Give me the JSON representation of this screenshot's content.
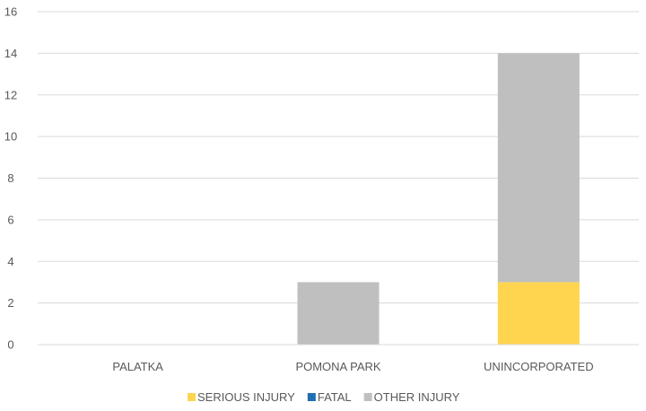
{
  "chart_data": {
    "type": "bar",
    "stacked": true,
    "categories": [
      "PALATKA",
      "POMONA PARK",
      "UNINCORPORATED"
    ],
    "series": [
      {
        "name": "SERIOUS INJURY",
        "color": "#FFD54F",
        "values": [
          0,
          0,
          3
        ]
      },
      {
        "name": "FATAL",
        "color": "#1F6FB2",
        "values": [
          0,
          0,
          0
        ]
      },
      {
        "name": "OTHER INJURY",
        "color": "#BFBFBF",
        "values": [
          0,
          3,
          11
        ]
      }
    ],
    "y_ticks": [
      "0",
      "2",
      "4",
      "6",
      "8",
      "10",
      "12",
      "14",
      "16"
    ],
    "ylim": [
      0,
      16
    ],
    "grid": true,
    "legend_position": "bottom",
    "title": "",
    "xlabel": "",
    "ylabel": ""
  }
}
